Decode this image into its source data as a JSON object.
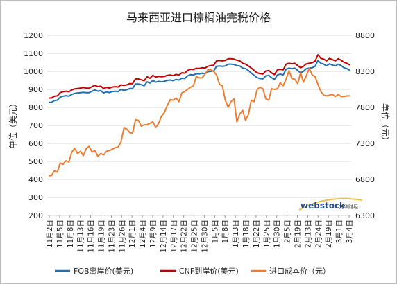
{
  "chart_data": {
    "type": "line",
    "title": "马来西亚进口棕榈油完税价格",
    "y_left_label": "单位（美元）",
    "y_right_label": "单位（元）",
    "y_left": {
      "min": 200,
      "max": 1200,
      "ticks": [
        200,
        300,
        400,
        500,
        600,
        700,
        800,
        900,
        1000,
        1100,
        1200
      ]
    },
    "y_right": {
      "min": 6300,
      "max": 8800,
      "ticks": [
        6300,
        6800,
        7300,
        7800,
        8300,
        8800
      ]
    },
    "x_tick_labels": [
      "11月2日",
      "11月5日",
      "11月8日",
      "11月13日",
      "11月16日",
      "11月19日",
      "11月23日",
      "11月26日",
      "12月1日",
      "12月4日",
      "12月9日",
      "12月14日",
      "12月17日",
      "12月22日",
      "12月25日",
      "12月30日",
      "1月5日",
      "1月8日",
      "1月13日",
      "1月18日",
      "1月22日",
      "1月25日",
      "1月30日",
      "2月5日",
      "2月19日",
      "2月13日",
      "2月24日",
      "2月19日",
      "3月1日",
      "3月4日"
    ],
    "grid": true,
    "legend_position": "bottom",
    "series": [
      {
        "name": "FOB离岸价(美元)",
        "color": "#1f6fb5",
        "axis": "left",
        "values": [
          828,
          828,
          838,
          840,
          857,
          862,
          865,
          862,
          872,
          878,
          880,
          882,
          884,
          882,
          882,
          890,
          897,
          890,
          893,
          880,
          886,
          882,
          888,
          890,
          888,
          900,
          895,
          898,
          905,
          905,
          930,
          930,
          926,
          920,
          942,
          935,
          950,
          940,
          945,
          942,
          945,
          950,
          952,
          948,
          955,
          952,
          962,
          960,
          975,
          982,
          980,
          987,
          986,
          990,
          988,
          998,
          1000,
          1002,
          1028,
          1030,
          1028,
          1030,
          1040,
          1040,
          1038,
          1032,
          1030,
          1018,
          1015,
          1005,
          990,
          978,
          965,
          960,
          958,
          975,
          978,
          965,
          955,
          980,
          985,
          980,
          1012,
          1018,
          1015,
          1018,
          1005,
          992,
          1000,
          1015,
          1018,
          1020,
          1028,
          1060,
          1045,
          1040,
          1030,
          1042,
          1035,
          1030,
          1040,
          1032,
          1020,
          1015,
          1005
        ]
      },
      {
        "name": "CNF到岸价(美元)",
        "color": "#c00000",
        "axis": "left",
        "values": [
          852,
          852,
          862,
          864,
          882,
          887,
          890,
          887,
          897,
          903,
          905,
          907,
          910,
          907,
          907,
          915,
          922,
          915,
          918,
          905,
          911,
          907,
          913,
          915,
          913,
          925,
          922,
          925,
          932,
          932,
          958,
          958,
          953,
          948,
          970,
          962,
          978,
          968,
          972,
          970,
          972,
          978,
          980,
          976,
          983,
          980,
          992,
          990,
          1005,
          1012,
          1010,
          1017,
          1016,
          1020,
          1018,
          1028,
          1032,
          1034,
          1058,
          1060,
          1058,
          1060,
          1070,
          1070,
          1068,
          1062,
          1058,
          1045,
          1040,
          1030,
          1018,
          1005,
          992,
          988,
          985,
          1002,
          1005,
          992,
          982,
          1008,
          1012,
          1008,
          1040,
          1045,
          1042,
          1045,
          1032,
          1020,
          1028,
          1042,
          1045,
          1048,
          1056,
          1092,
          1072,
          1068,
          1058,
          1072,
          1065,
          1058,
          1070,
          1062,
          1050,
          1045,
          1035
        ]
      },
      {
        "name": "进口成本价（元）",
        "color": "#ed7d31",
        "axis": "right",
        "values": [
          6850,
          6855,
          6920,
          6900,
          7030,
          7010,
          7060,
          7040,
          7180,
          7230,
          7160,
          7190,
          7130,
          7230,
          7260,
          7180,
          7200,
          7120,
          7160,
          7140,
          7190,
          7200,
          7220,
          7240,
          7250,
          7320,
          7510,
          7500,
          7450,
          7440,
          7630,
          7620,
          7540,
          7560,
          7560,
          7580,
          7600,
          7520,
          7580,
          7680,
          7730,
          7830,
          7910,
          7900,
          7930,
          7880,
          8000,
          8020,
          8050,
          8080,
          8100,
          8230,
          8210,
          8210,
          8260,
          8320,
          8320,
          8300,
          8250,
          8120,
          8100,
          7900,
          7800,
          7880,
          7920,
          7600,
          7710,
          7760,
          7620,
          7700,
          7900,
          7880,
          8050,
          8080,
          8060,
          7920,
          7900,
          8060,
          8050,
          8060,
          8140,
          8100,
          8190,
          8310,
          8200,
          8190,
          8130,
          8280,
          8150,
          8240,
          8340,
          8250,
          8230,
          8120,
          8020,
          7970,
          7960,
          7970,
          7980,
          7950,
          7980,
          7950,
          7950,
          7960,
          7960
        ]
      }
    ]
  },
  "watermark": {
    "brand": "webstock",
    "brand_sub": "文华财经"
  }
}
